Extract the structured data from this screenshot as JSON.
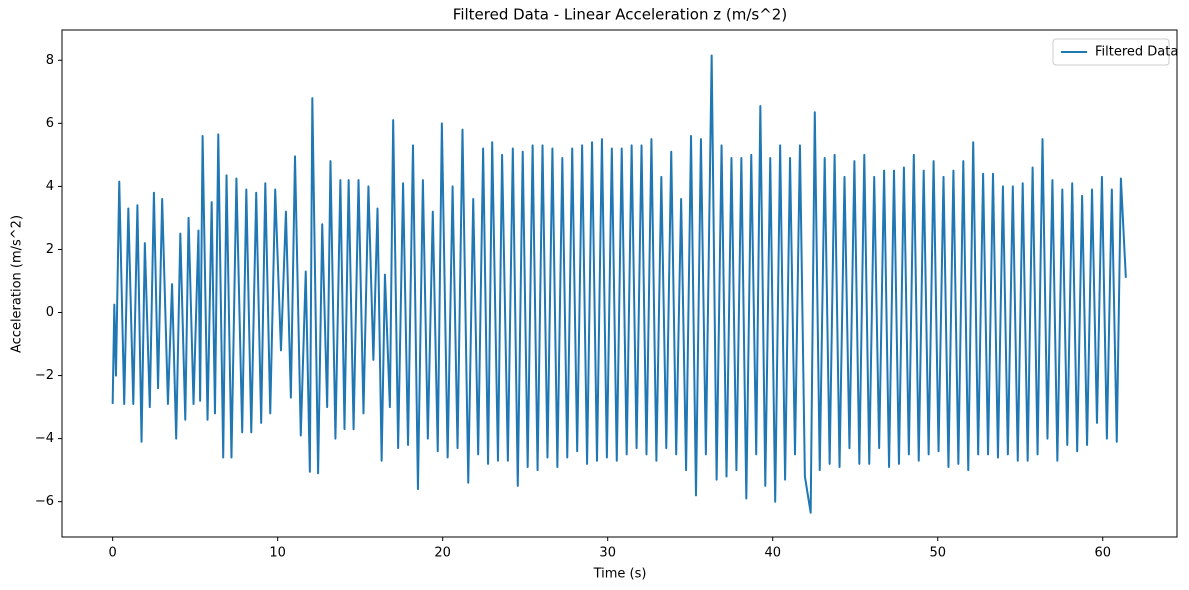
{
  "chart_data": {
    "type": "line",
    "title": "Filtered Data - Linear Acceleration z (m/s^2)",
    "x_label": "Time (s)",
    "y_label": "Acceleration (m/s^2)",
    "x": [
      0,
      0.1,
      0.2,
      0.4,
      0.7,
      0.95,
      1.25,
      1.5,
      1.75,
      1.95,
      2.25,
      2.5,
      2.75,
      3.0,
      3.35,
      3.6,
      3.85,
      4.1,
      4.4,
      4.6,
      4.9,
      5.2,
      5.3,
      5.45,
      5.75,
      6.0,
      6.2,
      6.4,
      6.7,
      6.9,
      7.2,
      7.5,
      7.85,
      8.1,
      8.4,
      8.7,
      9.0,
      9.25,
      9.55,
      9.85,
      10.2,
      10.5,
      10.8,
      11.05,
      11.4,
      11.7,
      11.95,
      12.1,
      12.45,
      12.7,
      13.0,
      13.2,
      13.5,
      13.8,
      14.05,
      14.3,
      14.6,
      14.9,
      15.2,
      15.5,
      15.8,
      16.05,
      16.3,
      16.5,
      16.8,
      17.0,
      17.3,
      17.6,
      17.9,
      18.2,
      18.5,
      18.8,
      19.1,
      19.4,
      19.7,
      19.95,
      20.3,
      20.6,
      20.9,
      21.2,
      21.55,
      21.85,
      22.15,
      22.45,
      22.75,
      23.0,
      23.35,
      23.6,
      23.95,
      24.25,
      24.55,
      24.85,
      25.15,
      25.45,
      25.75,
      26.05,
      26.35,
      26.65,
      26.95,
      27.25,
      27.55,
      27.85,
      28.15,
      28.45,
      28.75,
      29.05,
      29.35,
      29.65,
      29.95,
      30.25,
      30.55,
      30.85,
      31.15,
      31.45,
      31.75,
      32.05,
      32.35,
      32.65,
      32.95,
      33.25,
      33.55,
      33.85,
      34.15,
      34.45,
      34.75,
      35.05,
      35.35,
      35.65,
      35.95,
      36.3,
      36.6,
      36.9,
      37.2,
      37.5,
      37.8,
      38.1,
      38.4,
      38.7,
      39.0,
      39.25,
      39.55,
      39.85,
      40.15,
      40.45,
      40.75,
      41.05,
      41.35,
      41.65,
      41.95,
      42.3,
      42.55,
      42.85,
      43.15,
      43.45,
      43.75,
      44.05,
      44.35,
      44.65,
      44.95,
      45.25,
      45.55,
      45.85,
      46.15,
      46.45,
      46.75,
      47.05,
      47.35,
      47.65,
      47.95,
      48.25,
      48.55,
      48.85,
      49.15,
      49.45,
      49.75,
      50.05,
      50.35,
      50.65,
      50.95,
      51.25,
      51.55,
      51.85,
      52.15,
      52.45,
      52.75,
      53.05,
      53.35,
      53.65,
      53.95,
      54.25,
      54.55,
      54.85,
      55.15,
      55.45,
      55.75,
      56.05,
      56.35,
      56.65,
      56.95,
      57.25,
      57.55,
      57.85,
      58.15,
      58.45,
      58.75,
      59.05,
      59.35,
      59.65,
      59.95,
      60.25,
      60.55,
      60.85,
      61.1,
      61.4
    ],
    "series": [
      {
        "name": "Filtered Data",
        "color": "#1f77b4",
        "values": [
          -2.9,
          0.25,
          -2.0,
          4.15,
          -2.9,
          3.3,
          -2.9,
          3.4,
          -4.1,
          2.2,
          -3.0,
          3.8,
          -2.4,
          3.6,
          -2.9,
          0.9,
          -4.0,
          2.5,
          -3.4,
          3.0,
          -2.9,
          2.6,
          -2.8,
          5.6,
          -3.4,
          3.5,
          -3.2,
          5.65,
          -4.6,
          4.35,
          -4.6,
          4.25,
          -3.8,
          3.9,
          -3.8,
          3.8,
          -3.5,
          4.1,
          -3.2,
          3.9,
          -1.2,
          3.2,
          -2.7,
          4.95,
          -3.9,
          1.3,
          -5.05,
          6.8,
          -5.1,
          2.8,
          -3.0,
          4.8,
          -4.0,
          4.2,
          -3.7,
          4.2,
          -3.7,
          4.2,
          -3.2,
          4.0,
          -1.5,
          3.3,
          -4.7,
          1.2,
          -3.0,
          6.1,
          -4.3,
          4.1,
          -4.2,
          5.3,
          -5.6,
          4.2,
          -4.0,
          3.2,
          -4.4,
          6.0,
          -4.6,
          4.0,
          -4.3,
          5.8,
          -5.4,
          3.6,
          -4.5,
          5.2,
          -4.8,
          5.4,
          -4.7,
          5.0,
          -4.7,
          5.2,
          -5.5,
          5.1,
          -4.9,
          5.3,
          -5.0,
          5.3,
          -4.6,
          5.2,
          -4.9,
          4.9,
          -4.6,
          5.2,
          -4.4,
          5.3,
          -4.8,
          5.4,
          -4.7,
          5.5,
          -4.6,
          5.2,
          -4.7,
          5.2,
          -4.5,
          5.3,
          -4.3,
          5.3,
          -4.5,
          5.5,
          -4.7,
          4.3,
          -4.3,
          5.1,
          -4.5,
          3.6,
          -5.0,
          5.6,
          -5.8,
          5.5,
          -4.5,
          8.15,
          -5.3,
          5.3,
          -5.2,
          4.9,
          -5.0,
          4.9,
          -5.9,
          5.0,
          -4.5,
          6.55,
          -5.5,
          4.9,
          -6.0,
          5.3,
          -5.3,
          4.9,
          -4.5,
          5.3,
          -5.2,
          -6.35,
          6.35,
          -5.0,
          4.9,
          -4.8,
          5.0,
          -4.9,
          4.3,
          -4.3,
          4.8,
          -4.8,
          5.0,
          -4.8,
          4.3,
          -4.3,
          4.5,
          -4.9,
          4.5,
          -4.8,
          4.6,
          -4.5,
          5.0,
          -4.7,
          4.5,
          -4.5,
          4.8,
          -4.4,
          4.3,
          -4.9,
          4.5,
          -4.8,
          4.8,
          -5.0,
          5.4,
          -4.5,
          4.4,
          -4.5,
          4.4,
          -4.6,
          4.0,
          -4.5,
          4.0,
          -4.7,
          4.1,
          -4.7,
          4.6,
          -4.5,
          5.5,
          -4.0,
          4.2,
          -4.7,
          3.9,
          -4.2,
          4.1,
          -4.4,
          3.7,
          -4.2,
          3.9,
          -3.5,
          4.3,
          -4.0,
          3.9,
          -4.1,
          4.25,
          1.1
        ]
      }
    ],
    "xlim": [
      -3.07,
      64.5
    ],
    "ylim": [
      -7.12,
      8.96
    ],
    "xticks": [
      0,
      10,
      20,
      30,
      40,
      50,
      60
    ],
    "yticks": [
      {
        "value": -6,
        "label": "−6"
      },
      {
        "value": -4,
        "label": "−4"
      },
      {
        "value": -2,
        "label": "−2"
      },
      0,
      2,
      4,
      6,
      8
    ],
    "grid": false,
    "legend": "upper-right"
  }
}
